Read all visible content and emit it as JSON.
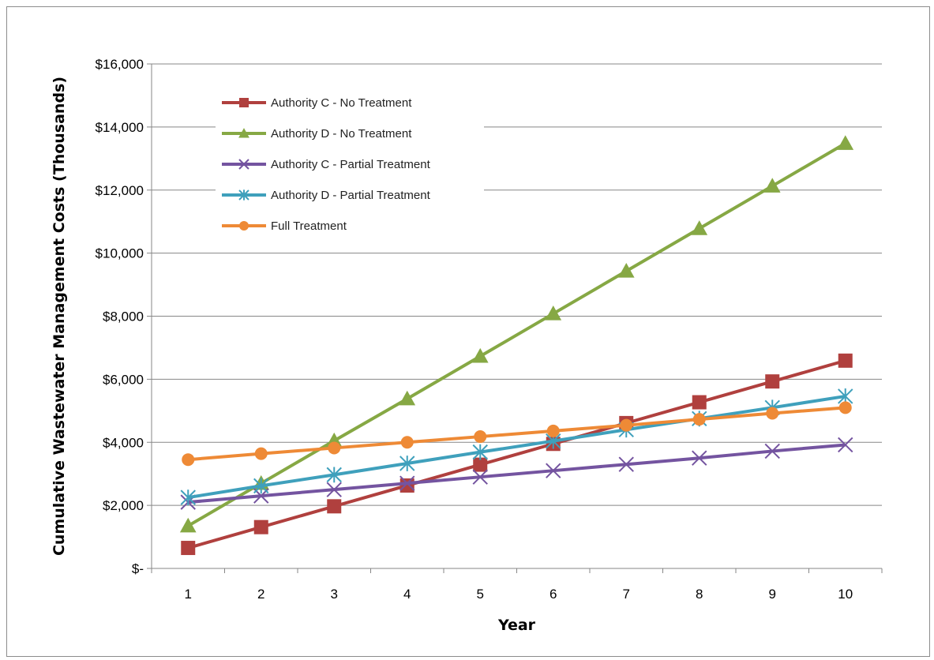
{
  "chart_data": {
    "type": "line",
    "title": "",
    "xlabel": "Year",
    "ylabel": "Cumulative Wastewater Management Costs (Thousands)",
    "categories": [
      "1",
      "2",
      "3",
      "4",
      "5",
      "6",
      "7",
      "8",
      "9",
      "10"
    ],
    "ylim": [
      0,
      16000
    ],
    "yticks": [
      0,
      2000,
      4000,
      6000,
      8000,
      10000,
      12000,
      14000,
      16000
    ],
    "ytick_labels": [
      "$-",
      "$2,000",
      "$4,000",
      "$6,000",
      "$8,000",
      "$10,000",
      "$12,000",
      "$14,000",
      "$16,000"
    ],
    "grid": "horizontal",
    "legend_position": "top-left",
    "series": [
      {
        "name": "Authority C - No Treatment",
        "color": "#b0403e",
        "marker": "square",
        "values": [
          650,
          1310,
          1970,
          2630,
          3290,
          3950,
          4610,
          5270,
          5930,
          6590
        ]
      },
      {
        "name": "Authority D - No Treatment",
        "color": "#86a844",
        "marker": "triangle",
        "values": [
          1350,
          2700,
          4050,
          5380,
          6730,
          8080,
          9430,
          10780,
          12130,
          13480
        ]
      },
      {
        "name": "Authority C - Partial Treatment",
        "color": "#7454a0",
        "marker": "x",
        "values": [
          2100,
          2300,
          2500,
          2700,
          2900,
          3100,
          3300,
          3500,
          3720,
          3920
        ]
      },
      {
        "name": "Authority D - Partial Treatment",
        "color": "#3fa0bc",
        "marker": "star",
        "values": [
          2250,
          2620,
          2970,
          3330,
          3690,
          4040,
          4400,
          4750,
          5100,
          5460
        ]
      },
      {
        "name": "Full Treatment",
        "color": "#ee8a36",
        "marker": "circle",
        "values": [
          3450,
          3640,
          3820,
          4000,
          4180,
          4360,
          4540,
          4730,
          4920,
          5100
        ]
      }
    ]
  }
}
